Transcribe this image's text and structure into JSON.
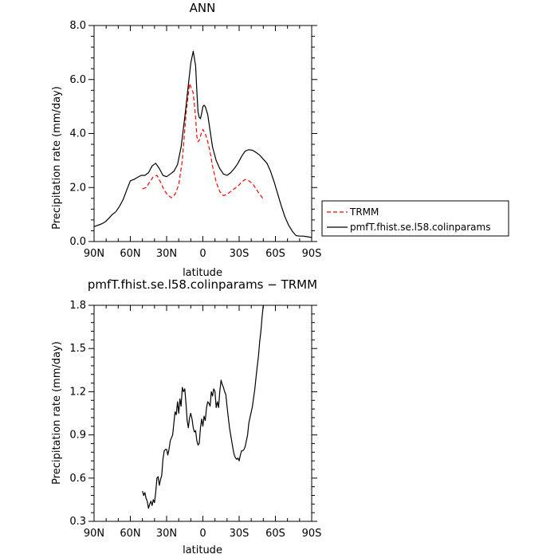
{
  "chart_data": [
    {
      "type": "line",
      "title": "ANN",
      "xlabel": "latitude",
      "ylabel": "Precipitation rate (mm/day)",
      "xlim": [
        90,
        -90
      ],
      "ylim": [
        0,
        8
      ],
      "xticks": [
        90,
        60,
        30,
        0,
        -30,
        -60,
        -90
      ],
      "xtick_labels": [
        "90N",
        "60N",
        "30N",
        "0",
        "30S",
        "60S",
        "90S"
      ],
      "yticks": [
        0,
        2,
        4,
        6,
        8
      ],
      "ytick_labels": [
        "0.0",
        "2.0",
        "4.0",
        "6.0",
        "8.0"
      ],
      "legend_position": "right, outside plot",
      "series": [
        {
          "name": "TRMM",
          "color": "#ff0000",
          "dash": "dashed",
          "x": [
            50,
            47,
            44,
            41,
            38,
            35,
            32,
            29,
            26,
            23,
            20,
            17,
            14,
            11,
            8,
            6,
            5,
            4,
            3,
            1,
            0,
            -2,
            -4,
            -6,
            -8,
            -11,
            -14,
            -17,
            -20,
            -23,
            -26,
            -29,
            -32,
            -35,
            -38,
            -41,
            -44,
            -47,
            -50
          ],
          "y": [
            1.95,
            2.0,
            2.2,
            2.4,
            2.45,
            2.2,
            1.9,
            1.72,
            1.62,
            1.75,
            2.1,
            3.0,
            4.7,
            5.85,
            5.5,
            4.6,
            3.9,
            3.7,
            3.75,
            4.05,
            4.15,
            4.0,
            3.7,
            3.3,
            2.8,
            2.2,
            1.85,
            1.7,
            1.75,
            1.85,
            1.95,
            2.05,
            2.2,
            2.3,
            2.25,
            2.15,
            1.95,
            1.75,
            1.58
          ]
        },
        {
          "name": "pmfT.fhist.se.l58.colinparams",
          "color": "#000000",
          "dash": "solid",
          "x": [
            90,
            87,
            84,
            81,
            78,
            75,
            72,
            69,
            66,
            63,
            60,
            57,
            54,
            51,
            48,
            45,
            42,
            39,
            36,
            33,
            30,
            27,
            24,
            21,
            18,
            15,
            12,
            10,
            8,
            6,
            5,
            4,
            3,
            2,
            1,
            0,
            -1,
            -2,
            -4,
            -6,
            -8,
            -11,
            -14,
            -17,
            -20,
            -23,
            -26,
            -29,
            -32,
            -35,
            -38,
            -41,
            -44,
            -47,
            -50,
            -53,
            -56,
            -59,
            -62,
            -65,
            -68,
            -71,
            -74,
            -77,
            -80,
            -83,
            -86,
            -90
          ],
          "y": [
            0.55,
            0.6,
            0.65,
            0.72,
            0.85,
            1.0,
            1.1,
            1.3,
            1.55,
            1.9,
            2.25,
            2.3,
            2.38,
            2.45,
            2.45,
            2.55,
            2.8,
            2.9,
            2.7,
            2.45,
            2.4,
            2.5,
            2.6,
            2.85,
            3.5,
            4.6,
            5.8,
            6.6,
            7.05,
            6.5,
            5.6,
            4.8,
            4.6,
            4.55,
            4.75,
            5.0,
            5.05,
            5.0,
            4.7,
            4.1,
            3.5,
            3.0,
            2.7,
            2.5,
            2.45,
            2.55,
            2.7,
            2.9,
            3.15,
            3.35,
            3.4,
            3.38,
            3.3,
            3.2,
            3.05,
            2.9,
            2.6,
            2.2,
            1.75,
            1.3,
            0.9,
            0.6,
            0.38,
            0.22,
            0.2,
            0.2,
            0.18,
            0.15
          ]
        }
      ]
    },
    {
      "type": "line",
      "title": "pmfT.fhist.se.l58.colinparams − TRMM",
      "xlabel": "latitude",
      "ylabel": "Precipitation rate (mm/day)",
      "xlim": [
        90,
        -90
      ],
      "ylim": [
        0.3,
        1.8
      ],
      "xticks": [
        90,
        60,
        30,
        0,
        -30,
        -60,
        -90
      ],
      "xtick_labels": [
        "90N",
        "60N",
        "30N",
        "0",
        "30S",
        "60S",
        "90S"
      ],
      "yticks": [
        0.3,
        0.6,
        0.9,
        1.2,
        1.5,
        1.8
      ],
      "ytick_labels": [
        "0.3",
        "0.6",
        "0.9",
        "1.2",
        "1.5",
        "1.8"
      ],
      "series": [
        {
          "color": "#000000",
          "dash": "solid",
          "x": [
            50,
            49,
            48,
            47,
            46,
            45,
            44,
            43,
            42,
            41,
            40,
            39,
            38,
            37,
            36,
            35,
            34,
            33,
            32,
            31,
            30,
            29,
            28,
            27,
            26,
            25,
            24,
            23,
            22,
            21,
            20,
            19,
            18,
            17,
            16,
            15,
            14,
            13,
            12,
            11,
            10,
            9,
            8,
            7,
            6,
            5,
            4,
            3,
            2,
            1,
            0,
            -1,
            -2,
            -3,
            -4,
            -5,
            -6,
            -7,
            -8,
            -9,
            -10,
            -11,
            -12,
            -13,
            -14,
            -15,
            -16,
            -17,
            -18,
            -19,
            -20,
            -21,
            -22,
            -23,
            -24,
            -25,
            -26,
            -27,
            -28,
            -29,
            -30,
            -31,
            -32,
            -33,
            -34,
            -35,
            -36,
            -37,
            -38,
            -39,
            -40,
            -41,
            -42,
            -43,
            -44,
            -45,
            -46,
            -47,
            -48,
            -49,
            -50
          ],
          "y": [
            0.51,
            0.48,
            0.5,
            0.46,
            0.44,
            0.39,
            0.42,
            0.44,
            0.41,
            0.45,
            0.43,
            0.5,
            0.6,
            0.61,
            0.55,
            0.59,
            0.62,
            0.73,
            0.79,
            0.8,
            0.8,
            0.76,
            0.8,
            0.86,
            0.88,
            0.9,
            0.98,
            1.06,
            1.04,
            1.13,
            1.05,
            1.15,
            1.1,
            1.23,
            1.2,
            1.22,
            1.12,
            1.0,
            0.95,
            1.02,
            1.05,
            1.01,
            0.95,
            0.92,
            0.93,
            0.86,
            0.83,
            0.84,
            0.95,
            1.01,
            0.96,
            1.03,
            1.0,
            1.09,
            1.13,
            1.12,
            1.1,
            1.2,
            1.17,
            1.22,
            1.2,
            1.09,
            1.13,
            1.09,
            1.2,
            1.28,
            1.25,
            1.23,
            1.2,
            1.18,
            1.1,
            1.02,
            0.95,
            0.9,
            0.85,
            0.8,
            0.76,
            0.74,
            0.73,
            0.74,
            0.72,
            0.76,
            0.79,
            0.79,
            0.8,
            0.82,
            0.86,
            0.9,
            0.98,
            1.02,
            1.06,
            1.1,
            1.16,
            1.22,
            1.3,
            1.38,
            1.45,
            1.55,
            1.62,
            1.72,
            1.8
          ]
        }
      ]
    }
  ]
}
